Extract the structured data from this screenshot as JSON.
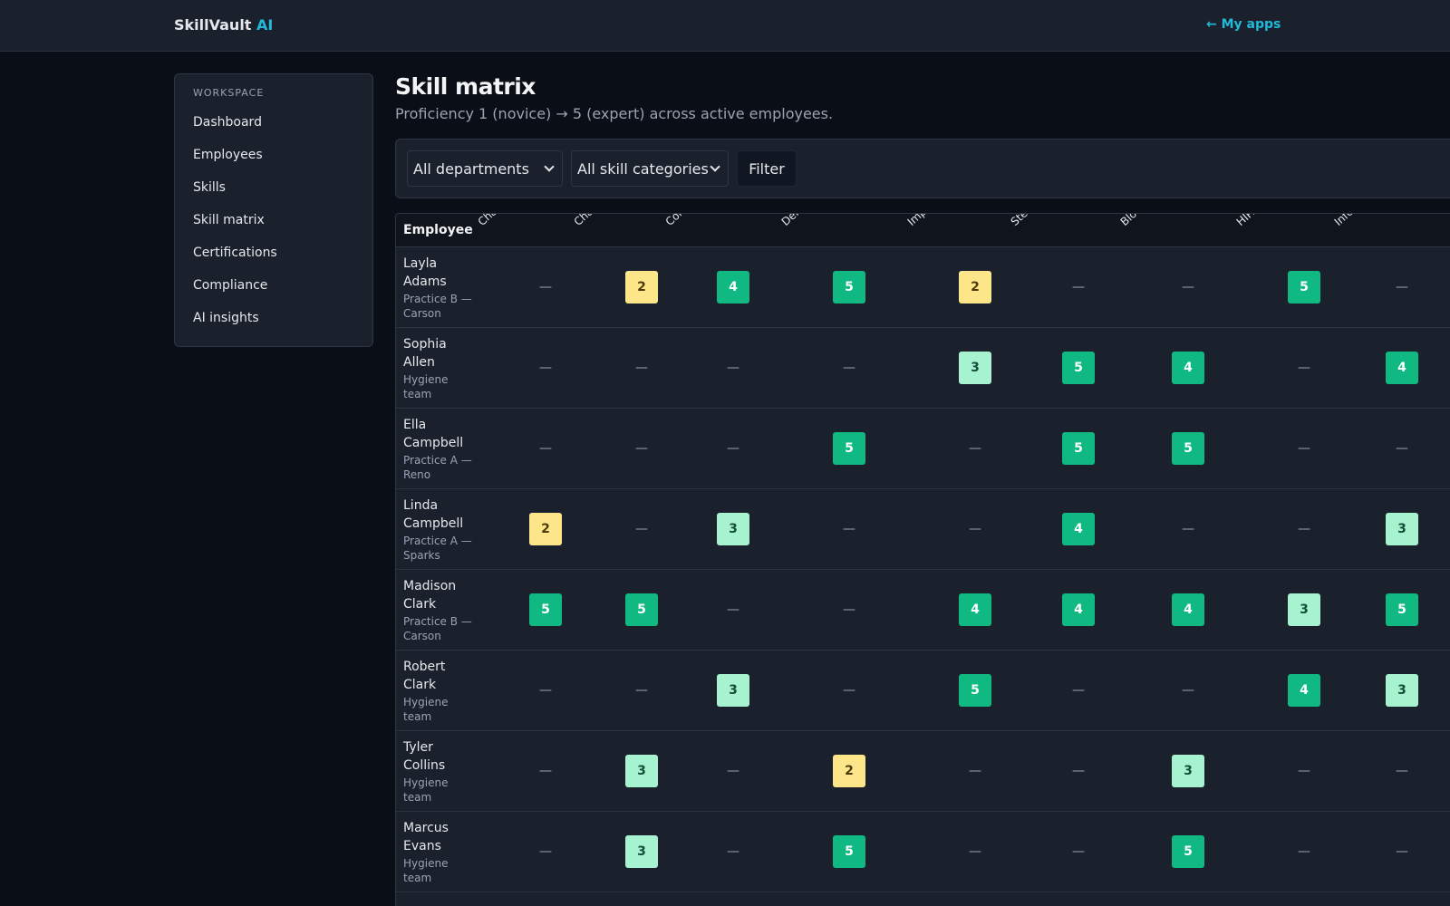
{
  "app": {
    "brand_main": "SkillVault",
    "brand_accent": "AI",
    "my_apps": "← My apps"
  },
  "sidebar": {
    "heading": "WORKSPACE",
    "items": [
      {
        "label": "Dashboard"
      },
      {
        "label": "Employees"
      },
      {
        "label": "Skills"
      },
      {
        "label": "Skill matrix"
      },
      {
        "label": "Certifications"
      },
      {
        "label": "Compliance"
      },
      {
        "label": "AI insights"
      }
    ]
  },
  "page": {
    "title": "Skill matrix",
    "subtitle": "Proficiency 1 (novice) → 5 (expert) across active employees."
  },
  "filters": {
    "department": "All departments",
    "category": "All skill categories",
    "button": "Filter"
  },
  "matrix": {
    "employee_header": "Employee",
    "skills": [
      "Chairsid",
      "Charting",
      "Coronal",
      "Dental R",
      "Impress",
      "Steriliza",
      "Bloodbo",
      "HIPAA P",
      "Infection"
    ],
    "empty_mark": "—",
    "rows": [
      {
        "name": "Layla Adams",
        "dept": "Practice B — Carson",
        "levels": [
          null,
          2,
          4,
          5,
          2,
          null,
          null,
          5,
          null
        ]
      },
      {
        "name": "Sophia Allen",
        "dept": "Hygiene team",
        "levels": [
          null,
          null,
          null,
          null,
          3,
          5,
          4,
          null,
          4
        ]
      },
      {
        "name": "Ella Campbell",
        "dept": "Practice A — Reno",
        "levels": [
          null,
          null,
          null,
          5,
          null,
          5,
          5,
          null,
          null
        ]
      },
      {
        "name": "Linda Campbell",
        "dept": "Practice A — Sparks",
        "levels": [
          2,
          null,
          3,
          null,
          null,
          4,
          null,
          null,
          3
        ]
      },
      {
        "name": "Madison Clark",
        "dept": "Practice B — Carson",
        "levels": [
          5,
          5,
          null,
          null,
          4,
          4,
          4,
          3,
          5
        ]
      },
      {
        "name": "Robert Clark",
        "dept": "Hygiene team",
        "levels": [
          null,
          null,
          3,
          null,
          5,
          null,
          null,
          4,
          3
        ]
      },
      {
        "name": "Tyler Collins",
        "dept": "Hygiene team",
        "levels": [
          null,
          3,
          null,
          2,
          null,
          null,
          3,
          null,
          null
        ]
      },
      {
        "name": "Marcus Evans",
        "dept": "Hygiene team",
        "levels": [
          null,
          3,
          null,
          5,
          null,
          null,
          5,
          null,
          null
        ]
      }
    ]
  }
}
